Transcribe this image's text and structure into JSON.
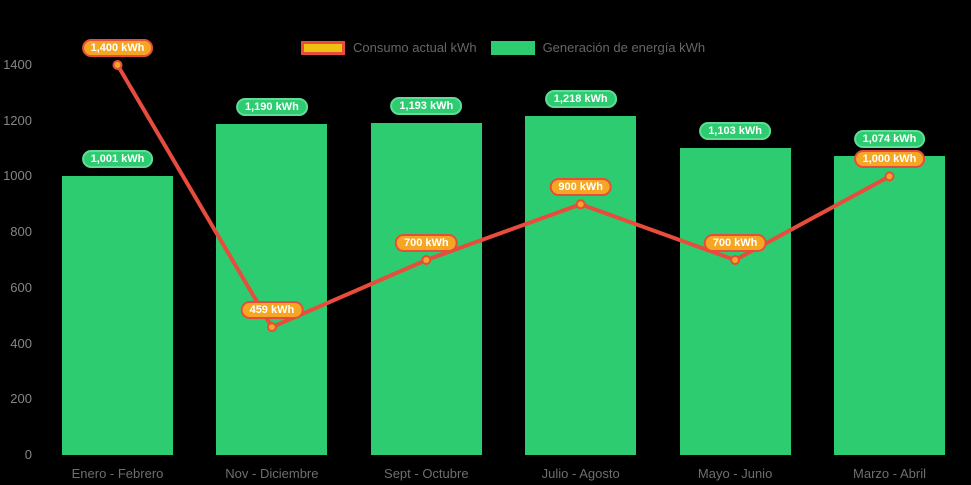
{
  "chart_data": {
    "type": "bar",
    "subtype": "bar-line-combo",
    "categories": [
      "Enero - Febrero",
      "Nov - Diciembre",
      "Sept - Octubre",
      "Julio - Agosto",
      "Mayo - Junio",
      "Marzo - Abril"
    ],
    "series": [
      {
        "name": "Consumo actual kWh",
        "type": "line",
        "values": [
          1400,
          459,
          700,
          900,
          700,
          1000
        ],
        "point_labels": [
          "1,400 kWh",
          "459 kWh",
          "700 kWh",
          "900 kWh",
          "700 kWh",
          "1,000 kWh"
        ],
        "line_color": "#E74C3C",
        "marker_fill": "#F5A623",
        "marker_border": "#E74C3C",
        "label_fill": "#F5A623",
        "label_border": "#E74C3C"
      },
      {
        "name": "Generación de energía kWh",
        "type": "bar",
        "values": [
          1001,
          1190,
          1193,
          1218,
          1103,
          1074
        ],
        "bar_labels": [
          "1,001 kWh",
          "1,190 kWh",
          "1,193 kWh",
          "1,218 kWh",
          "1,103 kWh",
          "1,074 kWh"
        ],
        "bar_color": "#2ECC71",
        "label_fill": "#2ECC71",
        "label_border": "#5FDD96"
      }
    ],
    "ylim": [
      0,
      1400
    ],
    "yticks": [
      "0",
      "200",
      "400",
      "600",
      "800",
      "1000",
      "1200",
      "1400"
    ],
    "grid": false,
    "legend_position": "top",
    "background": "#000000",
    "axis_text_color": "#6e6e6e"
  },
  "legend": {
    "items": [
      {
        "label": "Consumo actual kWh",
        "swatch_fill": "#EEC111",
        "swatch_border": "#E74C3C"
      },
      {
        "label": "Generación de energía kWh",
        "swatch_fill": "#2ECC71",
        "swatch_border": "#2ECC71"
      }
    ]
  }
}
